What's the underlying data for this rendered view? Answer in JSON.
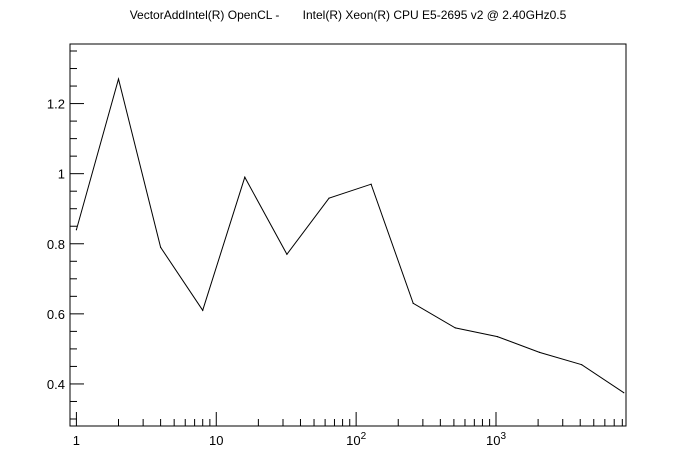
{
  "chart_data": {
    "type": "line",
    "title": "VectorAddIntel(R) OpenCL -       Intel(R) Xeon(R) CPU E5-2695 v2 @ 2.40GHz0.5",
    "xlabel": "",
    "ylabel": "",
    "x_scale": "log",
    "xlim": [
      0.9,
      8500
    ],
    "ylim": [
      0.28,
      1.37
    ],
    "grid": false,
    "x_tick_labels": [
      {
        "value": 1,
        "base": "1",
        "exp": ""
      },
      {
        "value": 10,
        "base": "10",
        "exp": ""
      },
      {
        "value": 100,
        "base": "10",
        "exp": "2"
      },
      {
        "value": 1000,
        "base": "10",
        "exp": "3"
      }
    ],
    "y_tick_labels": [
      {
        "value": 0.4,
        "label": "0.4"
      },
      {
        "value": 0.6,
        "label": "0.6"
      },
      {
        "value": 0.8,
        "label": "0.8"
      },
      {
        "value": 1.0,
        "label": "1"
      },
      {
        "value": 1.2,
        "label": "1.2"
      }
    ],
    "series": [
      {
        "x": [
          1,
          2,
          4,
          8,
          16,
          32,
          64,
          128,
          256,
          512,
          1024,
          2048,
          4096,
          8192
        ],
        "y": [
          0.84,
          1.27,
          0.79,
          0.61,
          0.99,
          0.77,
          0.93,
          0.97,
          0.63,
          0.56,
          0.535,
          0.49,
          0.455,
          0.375
        ]
      }
    ]
  }
}
